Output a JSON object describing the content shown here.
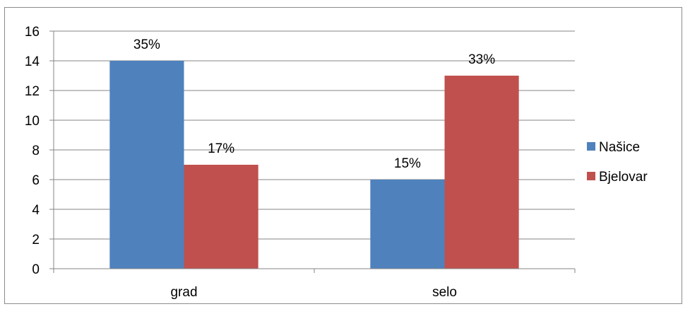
{
  "chart_data": {
    "type": "bar",
    "title": "",
    "xlabel": "",
    "ylabel": "",
    "categories": [
      "grad",
      "selo"
    ],
    "series": [
      {
        "name": "Našice",
        "values": [
          14,
          6
        ],
        "labels": [
          "35%",
          "15%"
        ],
        "color": "#4f81bd"
      },
      {
        "name": "Bjelovar",
        "values": [
          7,
          13
        ],
        "labels": [
          "17%",
          "33%"
        ],
        "color": "#c0504d"
      }
    ],
    "ylim": [
      0,
      16
    ],
    "yticks": [
      0,
      2,
      4,
      6,
      8,
      10,
      12,
      14,
      16
    ],
    "grid": true,
    "legend": "right"
  }
}
